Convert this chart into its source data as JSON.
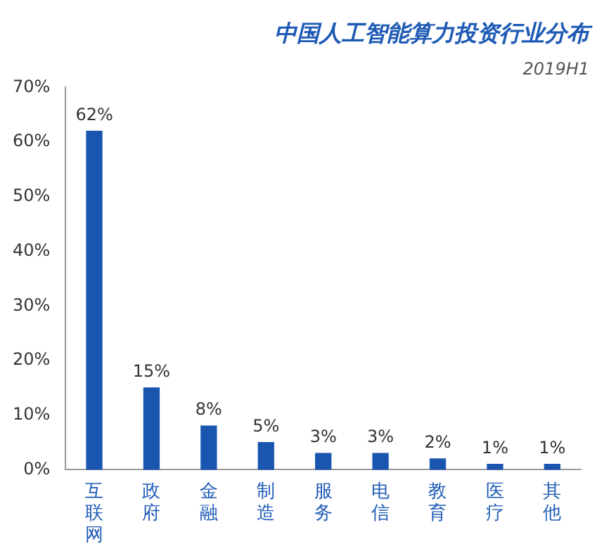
{
  "chart_data": {
    "type": "bar",
    "title": "中国人工智能算力投资行业分布",
    "subtitle": "2019H1",
    "categories": [
      "互联网",
      "政府",
      "金融",
      "制造",
      "服务",
      "电信",
      "教育",
      "医疗",
      "其他"
    ],
    "values": [
      62,
      15,
      8,
      5,
      3,
      3,
      2,
      1,
      1
    ],
    "value_labels": [
      "62%",
      "15%",
      "8%",
      "5%",
      "3%",
      "3%",
      "2%",
      "1%",
      "1%"
    ],
    "color": "#1a56b0",
    "ylim": [
      0,
      70
    ],
    "yticks": [
      {
        "value": 0,
        "label": "0%"
      },
      {
        "value": 10,
        "label": "10%"
      },
      {
        "value": 20,
        "label": "20%"
      },
      {
        "value": 30,
        "label": "30%"
      },
      {
        "value": 40,
        "label": "40%"
      },
      {
        "value": 50,
        "label": "50%"
      },
      {
        "value": 60,
        "label": "60%"
      },
      {
        "value": 70,
        "label": "70%"
      }
    ],
    "grid": false,
    "legend": false
  }
}
